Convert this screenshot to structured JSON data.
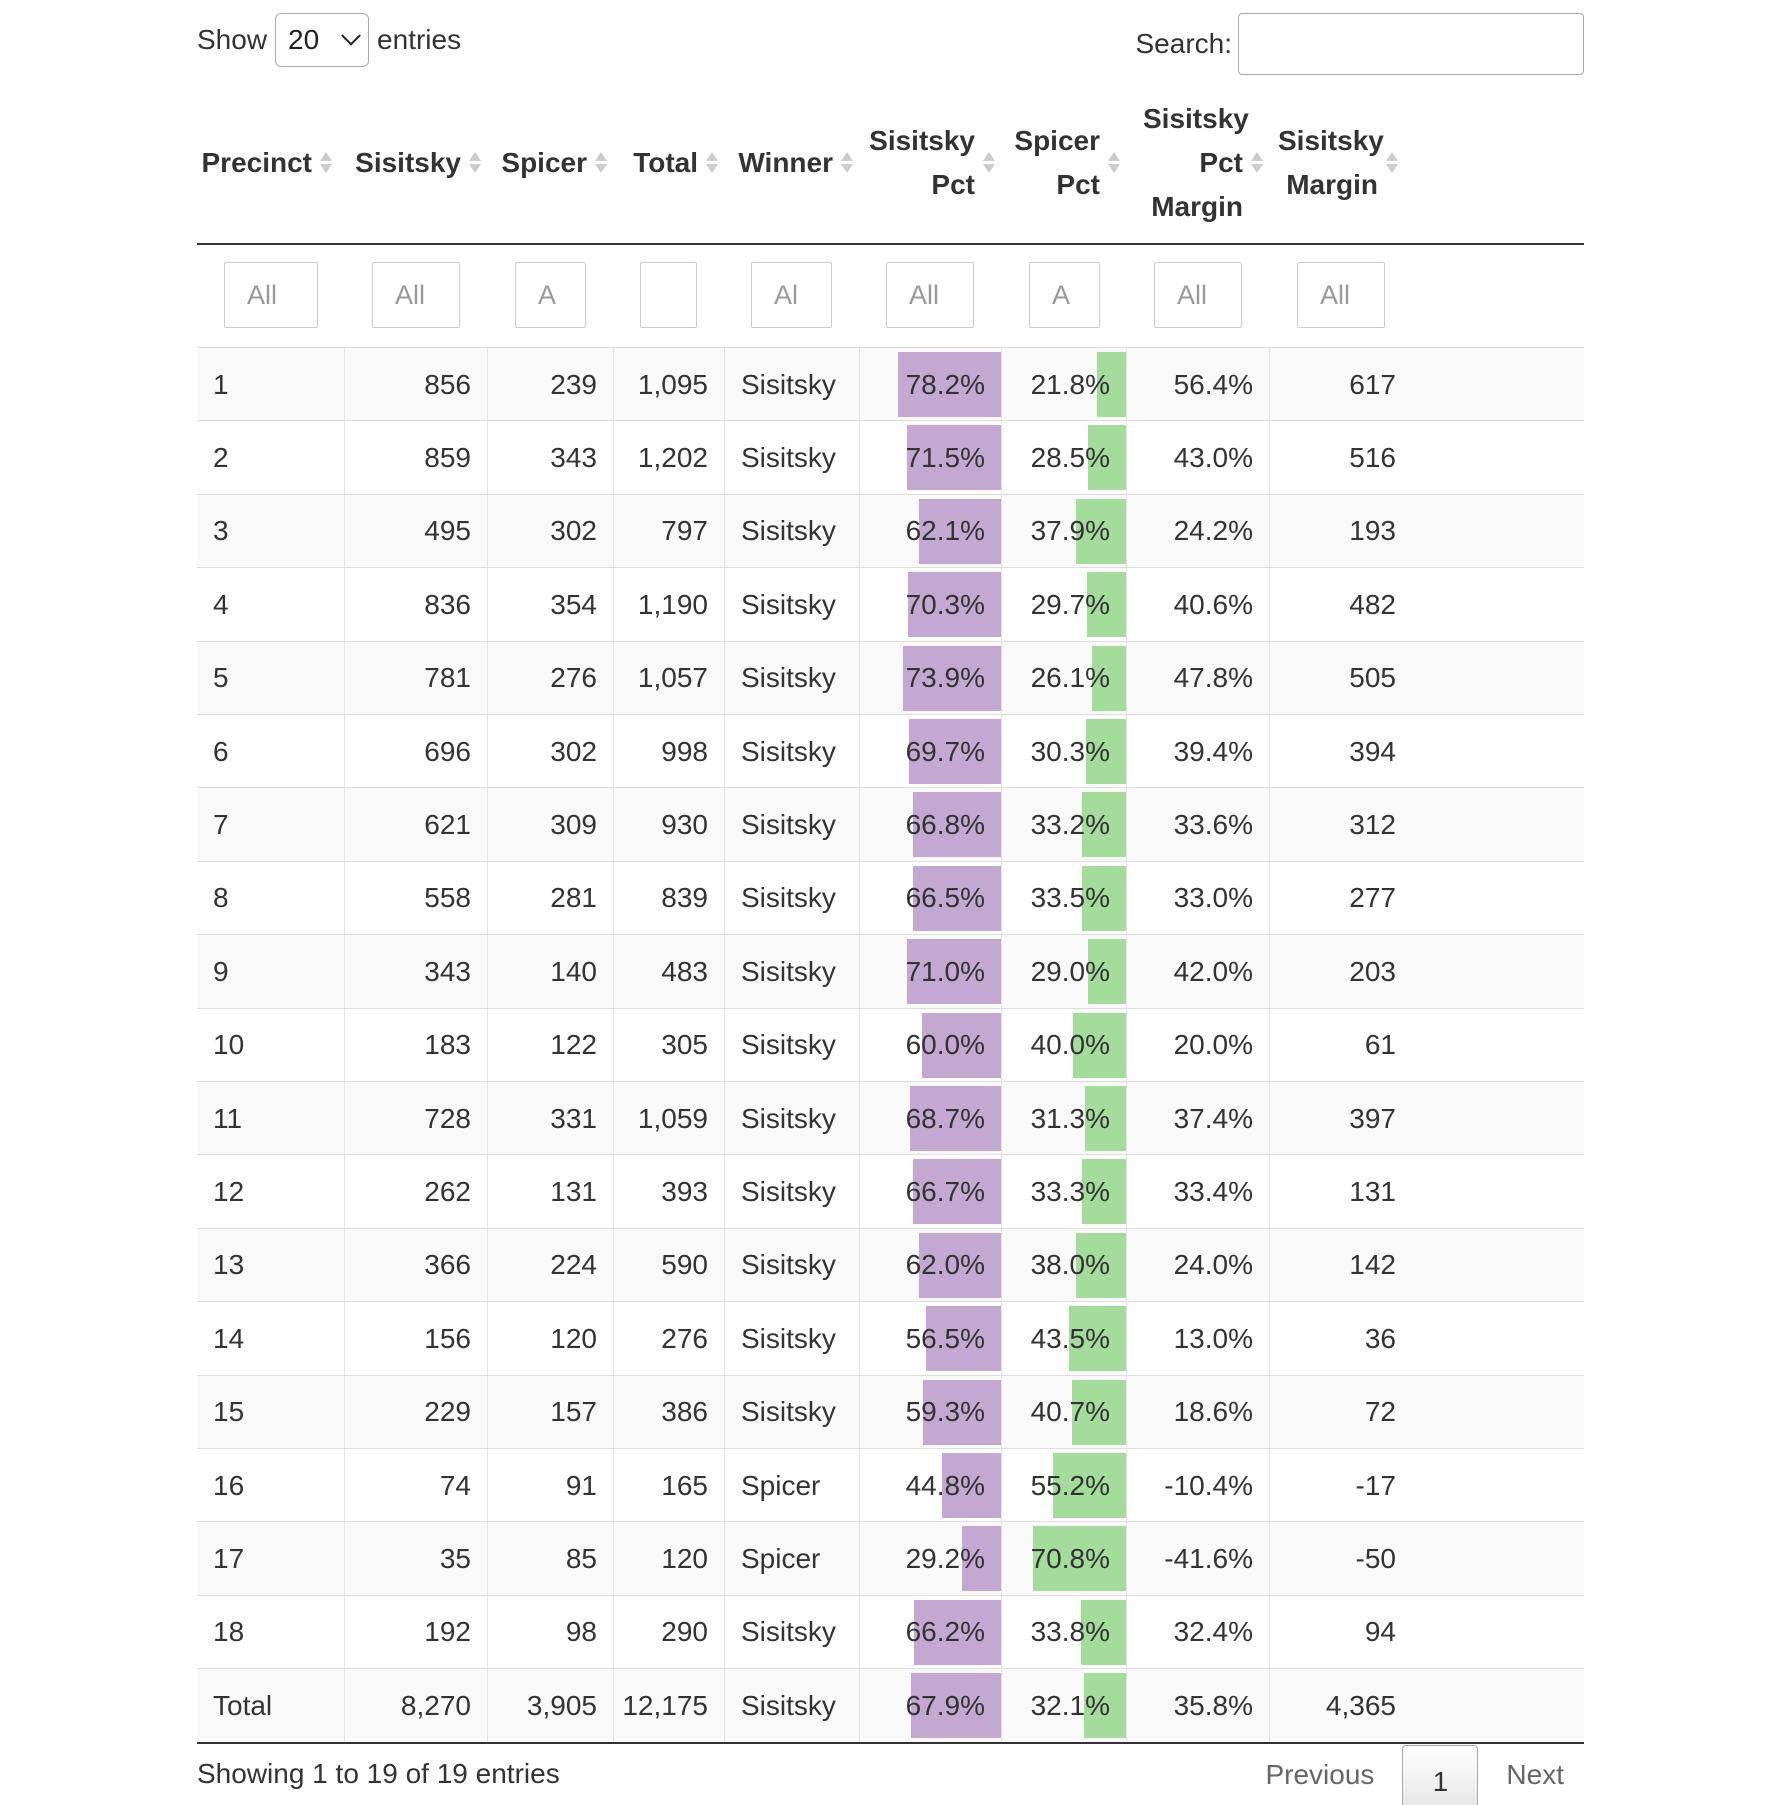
{
  "length_menu": {
    "show_label": "Show",
    "selected": "20",
    "entries_label": "entries"
  },
  "search": {
    "label": "Search:",
    "value": ""
  },
  "columns": [
    {
      "key": "precinct",
      "label": "Precinct"
    },
    {
      "key": "sisitsky",
      "label": "Sisitsky"
    },
    {
      "key": "spicer",
      "label": "Spicer"
    },
    {
      "key": "total",
      "label": "Total"
    },
    {
      "key": "winner",
      "label": "Winner"
    },
    {
      "key": "sisitsky_pct",
      "label": "Sisitsky Pct"
    },
    {
      "key": "spicer_pct",
      "label": "Spicer Pct"
    },
    {
      "key": "sisitsky_pct_margin",
      "label": "Sisitsky Pct Margin"
    },
    {
      "key": "sisitsky_margin",
      "label": "Sisitsky Margin"
    }
  ],
  "filters": [
    "All",
    "All",
    "A",
    "",
    "Al",
    "All",
    "A",
    "All",
    "All"
  ],
  "bar_colors": {
    "sisitsky": "#c3a8d1",
    "spicer": "#a3dc9b"
  },
  "rows": [
    {
      "precinct": "1",
      "sisitsky": "856",
      "spicer": "239",
      "total": "1,095",
      "winner": "Sisitsky",
      "sisitsky_pct": "78.2%",
      "spicer_pct": "21.8%",
      "sisitsky_pct_margin": "56.4%",
      "sisitsky_margin": "617"
    },
    {
      "precinct": "2",
      "sisitsky": "859",
      "spicer": "343",
      "total": "1,202",
      "winner": "Sisitsky",
      "sisitsky_pct": "71.5%",
      "spicer_pct": "28.5%",
      "sisitsky_pct_margin": "43.0%",
      "sisitsky_margin": "516"
    },
    {
      "precinct": "3",
      "sisitsky": "495",
      "spicer": "302",
      "total": "797",
      "winner": "Sisitsky",
      "sisitsky_pct": "62.1%",
      "spicer_pct": "37.9%",
      "sisitsky_pct_margin": "24.2%",
      "sisitsky_margin": "193"
    },
    {
      "precinct": "4",
      "sisitsky": "836",
      "spicer": "354",
      "total": "1,190",
      "winner": "Sisitsky",
      "sisitsky_pct": "70.3%",
      "spicer_pct": "29.7%",
      "sisitsky_pct_margin": "40.6%",
      "sisitsky_margin": "482"
    },
    {
      "precinct": "5",
      "sisitsky": "781",
      "spicer": "276",
      "total": "1,057",
      "winner": "Sisitsky",
      "sisitsky_pct": "73.9%",
      "spicer_pct": "26.1%",
      "sisitsky_pct_margin": "47.8%",
      "sisitsky_margin": "505"
    },
    {
      "precinct": "6",
      "sisitsky": "696",
      "spicer": "302",
      "total": "998",
      "winner": "Sisitsky",
      "sisitsky_pct": "69.7%",
      "spicer_pct": "30.3%",
      "sisitsky_pct_margin": "39.4%",
      "sisitsky_margin": "394"
    },
    {
      "precinct": "7",
      "sisitsky": "621",
      "spicer": "309",
      "total": "930",
      "winner": "Sisitsky",
      "sisitsky_pct": "66.8%",
      "spicer_pct": "33.2%",
      "sisitsky_pct_margin": "33.6%",
      "sisitsky_margin": "312"
    },
    {
      "precinct": "8",
      "sisitsky": "558",
      "spicer": "281",
      "total": "839",
      "winner": "Sisitsky",
      "sisitsky_pct": "66.5%",
      "spicer_pct": "33.5%",
      "sisitsky_pct_margin": "33.0%",
      "sisitsky_margin": "277"
    },
    {
      "precinct": "9",
      "sisitsky": "343",
      "spicer": "140",
      "total": "483",
      "winner": "Sisitsky",
      "sisitsky_pct": "71.0%",
      "spicer_pct": "29.0%",
      "sisitsky_pct_margin": "42.0%",
      "sisitsky_margin": "203"
    },
    {
      "precinct": "10",
      "sisitsky": "183",
      "spicer": "122",
      "total": "305",
      "winner": "Sisitsky",
      "sisitsky_pct": "60.0%",
      "spicer_pct": "40.0%",
      "sisitsky_pct_margin": "20.0%",
      "sisitsky_margin": "61"
    },
    {
      "precinct": "11",
      "sisitsky": "728",
      "spicer": "331",
      "total": "1,059",
      "winner": "Sisitsky",
      "sisitsky_pct": "68.7%",
      "spicer_pct": "31.3%",
      "sisitsky_pct_margin": "37.4%",
      "sisitsky_margin": "397"
    },
    {
      "precinct": "12",
      "sisitsky": "262",
      "spicer": "131",
      "total": "393",
      "winner": "Sisitsky",
      "sisitsky_pct": "66.7%",
      "spicer_pct": "33.3%",
      "sisitsky_pct_margin": "33.4%",
      "sisitsky_margin": "131"
    },
    {
      "precinct": "13",
      "sisitsky": "366",
      "spicer": "224",
      "total": "590",
      "winner": "Sisitsky",
      "sisitsky_pct": "62.0%",
      "spicer_pct": "38.0%",
      "sisitsky_pct_margin": "24.0%",
      "sisitsky_margin": "142"
    },
    {
      "precinct": "14",
      "sisitsky": "156",
      "spicer": "120",
      "total": "276",
      "winner": "Sisitsky",
      "sisitsky_pct": "56.5%",
      "spicer_pct": "43.5%",
      "sisitsky_pct_margin": "13.0%",
      "sisitsky_margin": "36"
    },
    {
      "precinct": "15",
      "sisitsky": "229",
      "spicer": "157",
      "total": "386",
      "winner": "Sisitsky",
      "sisitsky_pct": "59.3%",
      "spicer_pct": "40.7%",
      "sisitsky_pct_margin": "18.6%",
      "sisitsky_margin": "72"
    },
    {
      "precinct": "16",
      "sisitsky": "74",
      "spicer": "91",
      "total": "165",
      "winner": "Spicer",
      "sisitsky_pct": "44.8%",
      "spicer_pct": "55.2%",
      "sisitsky_pct_margin": "-10.4%",
      "sisitsky_margin": "-17"
    },
    {
      "precinct": "17",
      "sisitsky": "35",
      "spicer": "85",
      "total": "120",
      "winner": "Spicer",
      "sisitsky_pct": "29.2%",
      "spicer_pct": "70.8%",
      "sisitsky_pct_margin": "-41.6%",
      "sisitsky_margin": "-50"
    },
    {
      "precinct": "18",
      "sisitsky": "192",
      "spicer": "98",
      "total": "290",
      "winner": "Sisitsky",
      "sisitsky_pct": "66.2%",
      "spicer_pct": "33.8%",
      "sisitsky_pct_margin": "32.4%",
      "sisitsky_margin": "94"
    },
    {
      "precinct": "Total",
      "sisitsky": "8,270",
      "spicer": "3,905",
      "total": "12,175",
      "winner": "Sisitsky",
      "sisitsky_pct": "67.9%",
      "spicer_pct": "32.1%",
      "sisitsky_pct_margin": "35.8%",
      "sisitsky_margin": "4,365"
    }
  ],
  "footer": {
    "info": "Showing 1 to 19 of 19 entries",
    "pagination": {
      "previous": "Previous",
      "current_page": "1",
      "next": "Next"
    }
  }
}
